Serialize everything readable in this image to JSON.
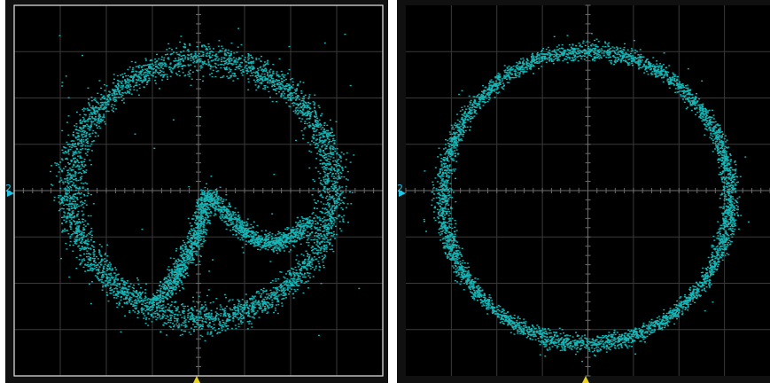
{
  "colors": {
    "bezel": "#101010",
    "screen": "#000000",
    "grid": "#3a3a3a",
    "axis": "#6e6e6e",
    "trace": "#17b5b5",
    "channel_marker": "#1ec8e8",
    "trigger_marker": "#e6d21e",
    "frame": "#e8e8e8"
  },
  "icons": {
    "channel_marker": "arrow-right-icon",
    "trigger_marker": "arrow-up-icon"
  },
  "panels": [
    {
      "channel_label": "2",
      "trace": "circle-with-inner-spiral"
    },
    {
      "channel_label": "2",
      "trace": "circle"
    }
  ]
}
